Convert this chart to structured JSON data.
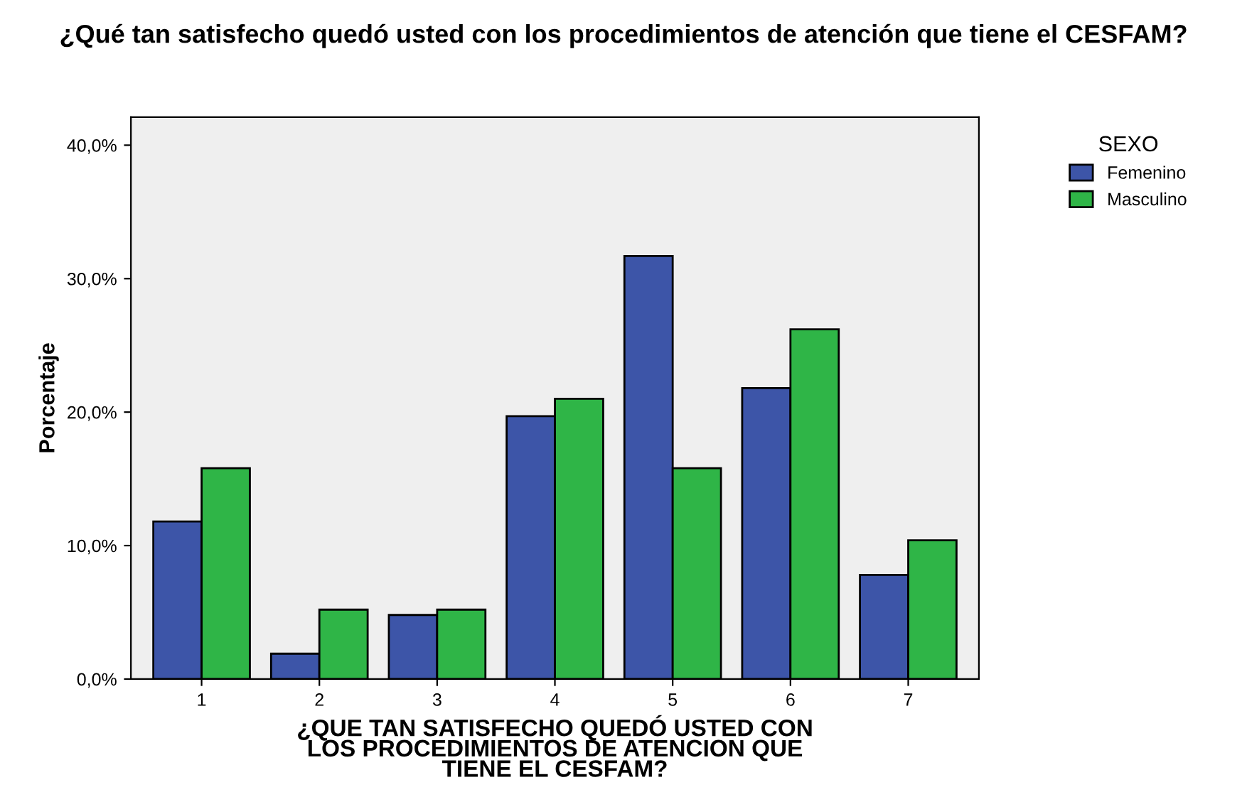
{
  "chart_data": {
    "type": "bar",
    "title": "¿Qué tan satisfecho quedó usted con los procedimientos de atención que tiene el CESFAM?",
    "xlabel": "¿QUE TAN SATISFECHO QUEDÓ USTED CON\nLOS PROCEDIMIENTOS DE ATENCION QUE\nTIENE EL CESFAM?",
    "ylabel": "Porcentaje",
    "legend_title": "SEXO",
    "categories": [
      "1",
      "2",
      "3",
      "4",
      "5",
      "6",
      "7"
    ],
    "series": [
      {
        "name": "Femenino",
        "color": "#3d55a8",
        "values": [
          11.8,
          1.9,
          4.8,
          19.7,
          31.7,
          21.8,
          7.8
        ]
      },
      {
        "name": "Masculino",
        "color": "#2fb547",
        "values": [
          15.8,
          5.2,
          5.2,
          21.0,
          15.8,
          26.2,
          10.4
        ]
      }
    ],
    "ylim": [
      0,
      42.1
    ],
    "yticks": [
      {
        "value": 0,
        "label": "0,0%"
      },
      {
        "value": 10,
        "label": "10,0%"
      },
      {
        "value": 20,
        "label": "20,0%"
      },
      {
        "value": 30,
        "label": "30,0%"
      },
      {
        "value": 40,
        "label": "40,0%"
      }
    ],
    "grid": false,
    "legend": "right"
  }
}
